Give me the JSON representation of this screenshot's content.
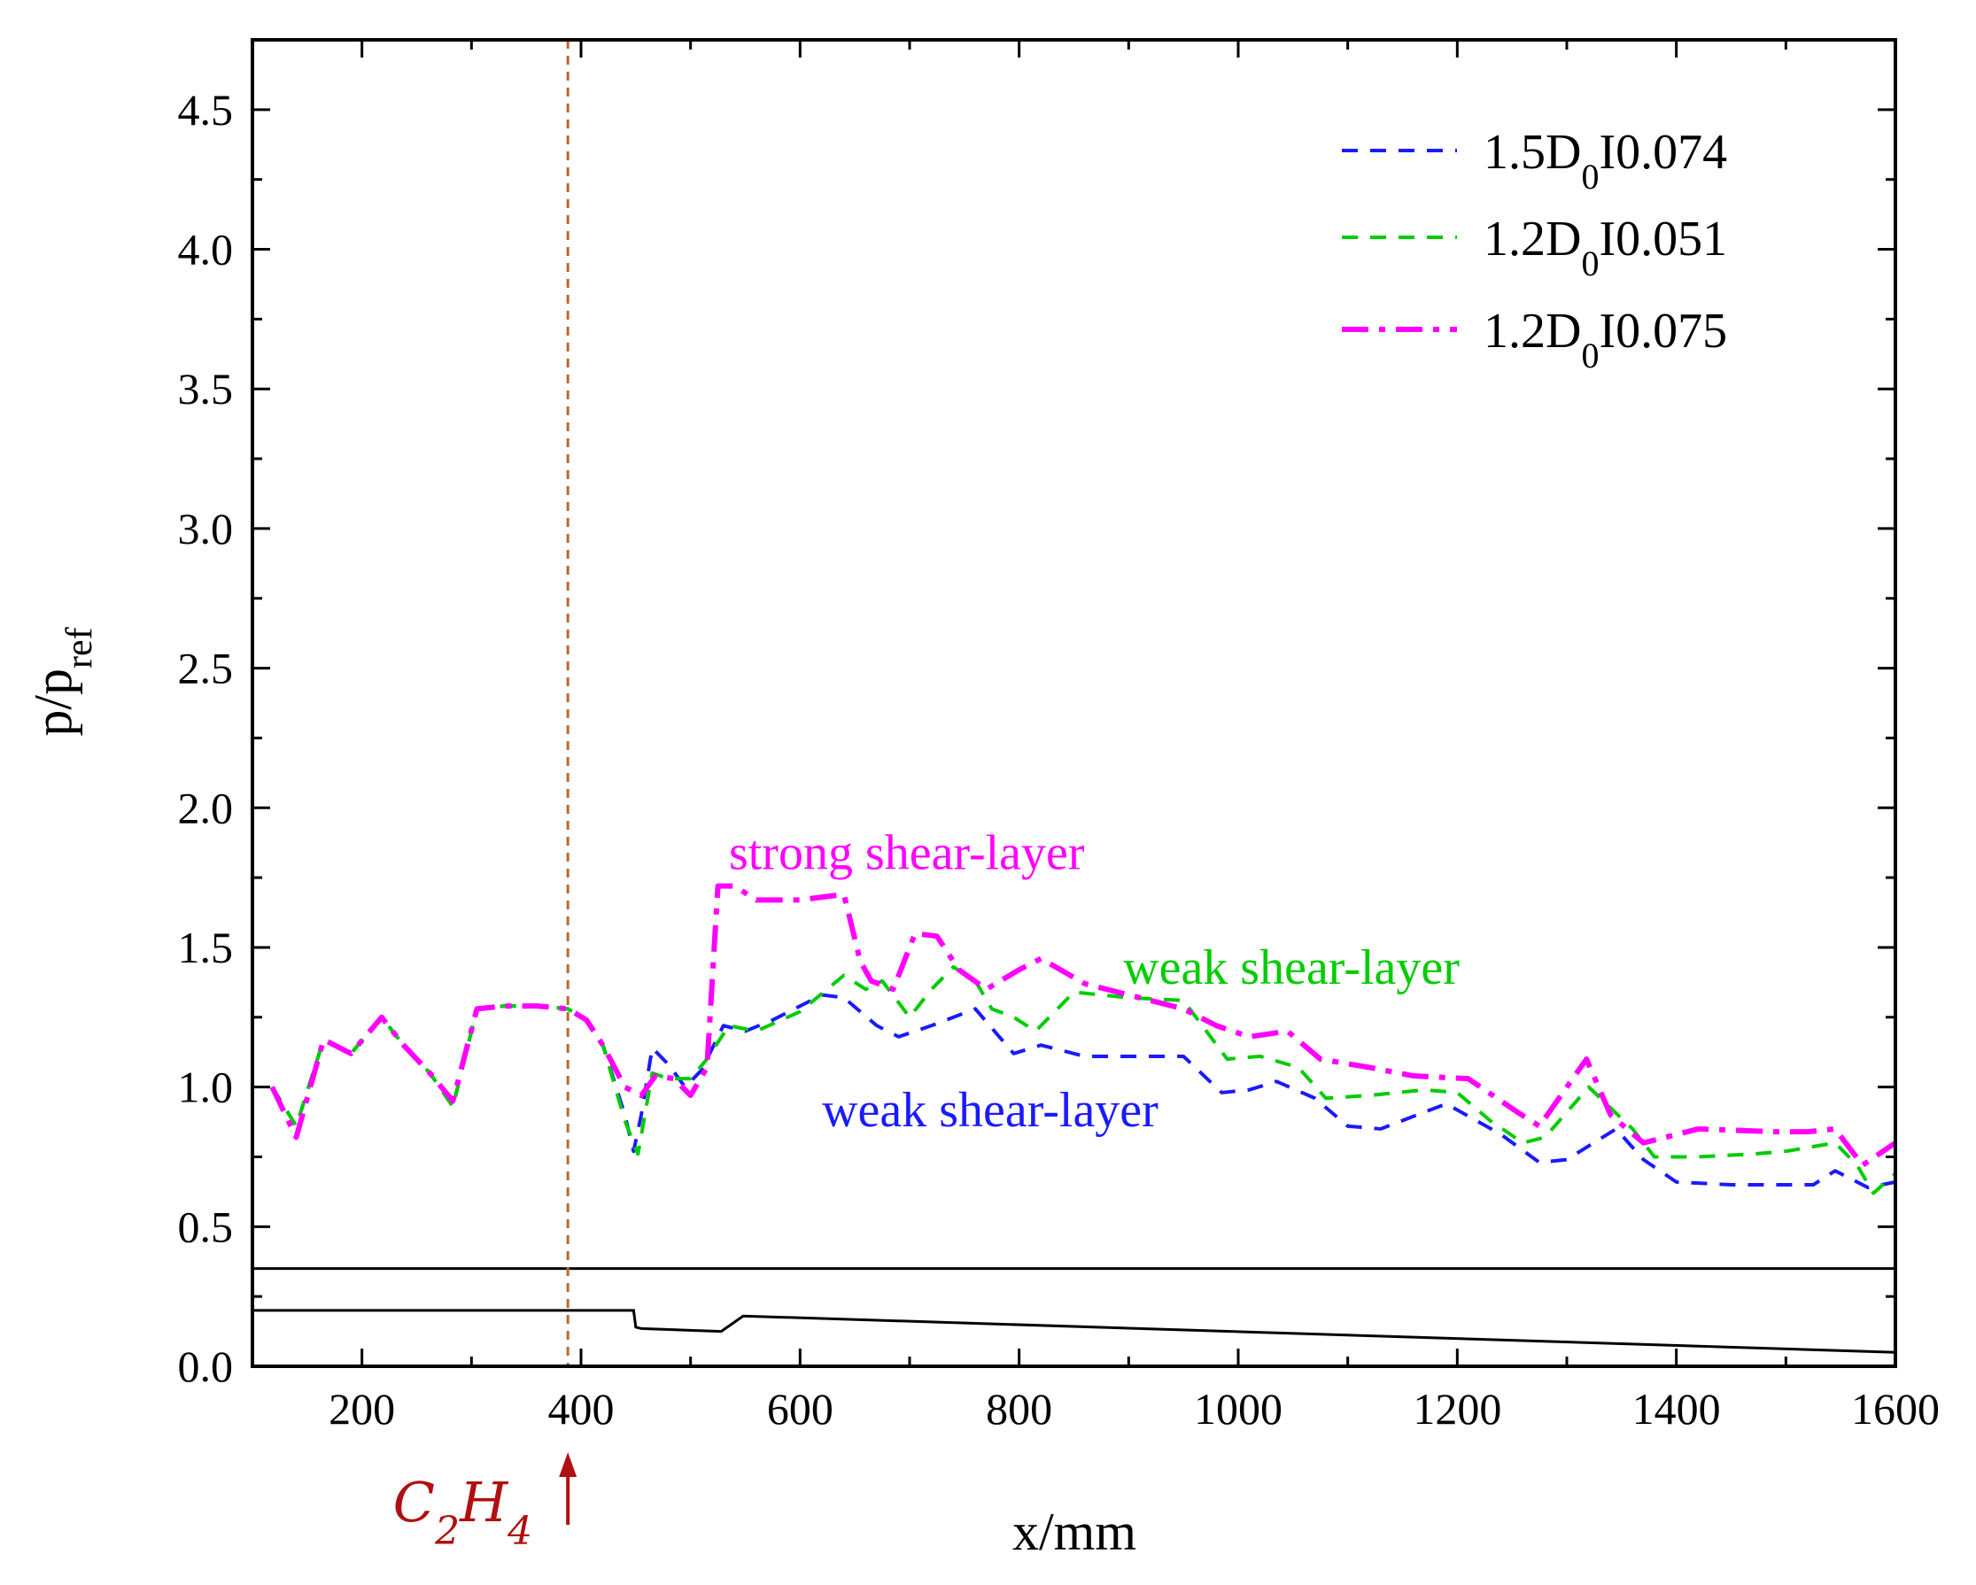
{
  "chart_data": {
    "type": "line",
    "title": "",
    "xlabel": "x/mm",
    "ylabel_main": "p/p",
    "ylabel_sub": "ref",
    "xlim": [
      100,
      1600
    ],
    "ylim": [
      0,
      4.75
    ],
    "xticks": [
      200,
      400,
      600,
      800,
      1000,
      1200,
      1400,
      1600
    ],
    "xtick_labels": [
      "200",
      "400",
      "600",
      "800",
      "1000",
      "1200",
      "1400",
      "1600"
    ],
    "yticks": [
      0.0,
      0.5,
      1.0,
      1.5,
      2.0,
      2.5,
      3.0,
      3.5,
      4.0,
      4.5
    ],
    "ytick_labels": [
      "0.0",
      "0.5",
      "1.0",
      "1.5",
      "2.0",
      "2.5",
      "3.0",
      "3.5",
      "4.0",
      "4.5"
    ],
    "grid": false,
    "legend_position": "top-right",
    "series": [
      {
        "name_main": "1.5D",
        "name_sub": "0",
        "name_tail": "I0.074",
        "color": "#1a1aff",
        "style": "dash",
        "points": [
          [
            118,
            1.0
          ],
          [
            140,
            0.86
          ],
          [
            165,
            1.17
          ],
          [
            190,
            1.12
          ],
          [
            218,
            1.25
          ],
          [
            238,
            1.15
          ],
          [
            262,
            1.05
          ],
          [
            283,
            0.93
          ],
          [
            305,
            1.28
          ],
          [
            330,
            1.29
          ],
          [
            360,
            1.29
          ],
          [
            388,
            1.28
          ],
          [
            405,
            1.24
          ],
          [
            420,
            1.15
          ],
          [
            440,
            0.9
          ],
          [
            448,
            0.77
          ],
          [
            455,
            0.9
          ],
          [
            465,
            1.14
          ],
          [
            480,
            1.08
          ],
          [
            495,
            1.0
          ],
          [
            510,
            1.06
          ],
          [
            530,
            1.22
          ],
          [
            550,
            1.2
          ],
          [
            575,
            1.24
          ],
          [
            620,
            1.33
          ],
          [
            640,
            1.32
          ],
          [
            670,
            1.22
          ],
          [
            690,
            1.18
          ],
          [
            720,
            1.22
          ],
          [
            760,
            1.28
          ],
          [
            795,
            1.12
          ],
          [
            820,
            1.15
          ],
          [
            860,
            1.11
          ],
          [
            900,
            1.11
          ],
          [
            950,
            1.11
          ],
          [
            985,
            0.98
          ],
          [
            1010,
            0.99
          ],
          [
            1035,
            1.02
          ],
          [
            1070,
            0.96
          ],
          [
            1100,
            0.86
          ],
          [
            1130,
            0.85
          ],
          [
            1190,
            0.94
          ],
          [
            1240,
            0.83
          ],
          [
            1275,
            0.73
          ],
          [
            1300,
            0.74
          ],
          [
            1345,
            0.85
          ],
          [
            1370,
            0.74
          ],
          [
            1400,
            0.66
          ],
          [
            1450,
            0.65
          ],
          [
            1525,
            0.65
          ],
          [
            1545,
            0.7
          ],
          [
            1575,
            0.64
          ],
          [
            1600,
            0.66
          ]
        ]
      },
      {
        "name_main": "1.2D",
        "name_sub": "0",
        "name_tail": "I0.051",
        "color": "#00cc00",
        "style": "dash",
        "points": [
          [
            118,
            1.0
          ],
          [
            140,
            0.86
          ],
          [
            165,
            1.17
          ],
          [
            190,
            1.12
          ],
          [
            218,
            1.25
          ],
          [
            238,
            1.15
          ],
          [
            262,
            1.05
          ],
          [
            283,
            0.93
          ],
          [
            305,
            1.28
          ],
          [
            330,
            1.29
          ],
          [
            360,
            1.29
          ],
          [
            388,
            1.28
          ],
          [
            405,
            1.24
          ],
          [
            420,
            1.15
          ],
          [
            440,
            0.88
          ],
          [
            452,
            0.76
          ],
          [
            465,
            1.05
          ],
          [
            480,
            1.03
          ],
          [
            500,
            1.03
          ],
          [
            515,
            1.1
          ],
          [
            535,
            1.22
          ],
          [
            560,
            1.2
          ],
          [
            600,
            1.27
          ],
          [
            640,
            1.4
          ],
          [
            660,
            1.35
          ],
          [
            675,
            1.38
          ],
          [
            700,
            1.25
          ],
          [
            720,
            1.35
          ],
          [
            740,
            1.43
          ],
          [
            760,
            1.38
          ],
          [
            775,
            1.28
          ],
          [
            795,
            1.25
          ],
          [
            815,
            1.2
          ],
          [
            850,
            1.34
          ],
          [
            900,
            1.32
          ],
          [
            950,
            1.31
          ],
          [
            990,
            1.1
          ],
          [
            1020,
            1.11
          ],
          [
            1055,
            1.07
          ],
          [
            1080,
            0.96
          ],
          [
            1120,
            0.97
          ],
          [
            1170,
            0.99
          ],
          [
            1200,
            0.98
          ],
          [
            1230,
            0.88
          ],
          [
            1260,
            0.8
          ],
          [
            1280,
            0.82
          ],
          [
            1320,
            1.0
          ],
          [
            1360,
            0.85
          ],
          [
            1380,
            0.75
          ],
          [
            1420,
            0.75
          ],
          [
            1470,
            0.76
          ],
          [
            1500,
            0.77
          ],
          [
            1545,
            0.8
          ],
          [
            1565,
            0.72
          ],
          [
            1580,
            0.62
          ],
          [
            1600,
            0.69
          ]
        ]
      },
      {
        "name_main": "1.2D",
        "name_sub": "0",
        "name_tail": "I0.075",
        "color": "#ff00ff",
        "style": "dashdot",
        "points": [
          [
            118,
            1.0
          ],
          [
            140,
            0.82
          ],
          [
            165,
            1.17
          ],
          [
            190,
            1.12
          ],
          [
            218,
            1.25
          ],
          [
            238,
            1.15
          ],
          [
            262,
            1.05
          ],
          [
            283,
            0.95
          ],
          [
            305,
            1.28
          ],
          [
            330,
            1.29
          ],
          [
            360,
            1.29
          ],
          [
            388,
            1.28
          ],
          [
            405,
            1.24
          ],
          [
            420,
            1.15
          ],
          [
            440,
            1.0
          ],
          [
            455,
            0.97
          ],
          [
            468,
            1.04
          ],
          [
            485,
            1.03
          ],
          [
            500,
            0.97
          ],
          [
            515,
            1.07
          ],
          [
            525,
            1.72
          ],
          [
            540,
            1.72
          ],
          [
            560,
            1.67
          ],
          [
            600,
            1.67
          ],
          [
            640,
            1.69
          ],
          [
            655,
            1.45
          ],
          [
            665,
            1.38
          ],
          [
            685,
            1.35
          ],
          [
            705,
            1.55
          ],
          [
            725,
            1.54
          ],
          [
            745,
            1.42
          ],
          [
            770,
            1.35
          ],
          [
            800,
            1.42
          ],
          [
            820,
            1.46
          ],
          [
            860,
            1.37
          ],
          [
            900,
            1.33
          ],
          [
            950,
            1.28
          ],
          [
            980,
            1.22
          ],
          [
            1010,
            1.18
          ],
          [
            1045,
            1.2
          ],
          [
            1075,
            1.1
          ],
          [
            1120,
            1.07
          ],
          [
            1160,
            1.04
          ],
          [
            1210,
            1.03
          ],
          [
            1255,
            0.91
          ],
          [
            1275,
            0.86
          ],
          [
            1300,
            1.0
          ],
          [
            1318,
            1.1
          ],
          [
            1340,
            0.9
          ],
          [
            1370,
            0.8
          ],
          [
            1420,
            0.85
          ],
          [
            1490,
            0.84
          ],
          [
            1520,
            0.84
          ],
          [
            1545,
            0.85
          ],
          [
            1570,
            0.72
          ],
          [
            1600,
            0.8
          ]
        ]
      }
    ],
    "geometry_lines": [
      {
        "name": "upper-wall",
        "points": [
          [
            100,
            0.35
          ],
          [
            1600,
            0.35
          ]
        ]
      },
      {
        "name": "lower-wall",
        "points": [
          [
            100,
            0.2
          ],
          [
            448,
            0.2
          ],
          [
            450,
            0.14
          ],
          [
            455,
            0.135
          ],
          [
            528,
            0.125
          ],
          [
            548,
            0.18
          ],
          [
            1600,
            0.05
          ]
        ]
      }
    ],
    "injection_x": 388,
    "injection_label_main": "C",
    "injection_label_sub1": "2",
    "injection_label_mid": "H",
    "injection_label_sub2": "4",
    "annotations": [
      {
        "text": "strong shear-layer",
        "color": "#ff00ff",
        "x": 535,
        "y": 1.78
      },
      {
        "text": "weak shear-layer",
        "color": "#00cc00",
        "x": 895,
        "y": 1.37
      },
      {
        "text": "weak shear-layer",
        "color": "#1a1aff",
        "x": 620,
        "y": 0.86
      }
    ]
  }
}
